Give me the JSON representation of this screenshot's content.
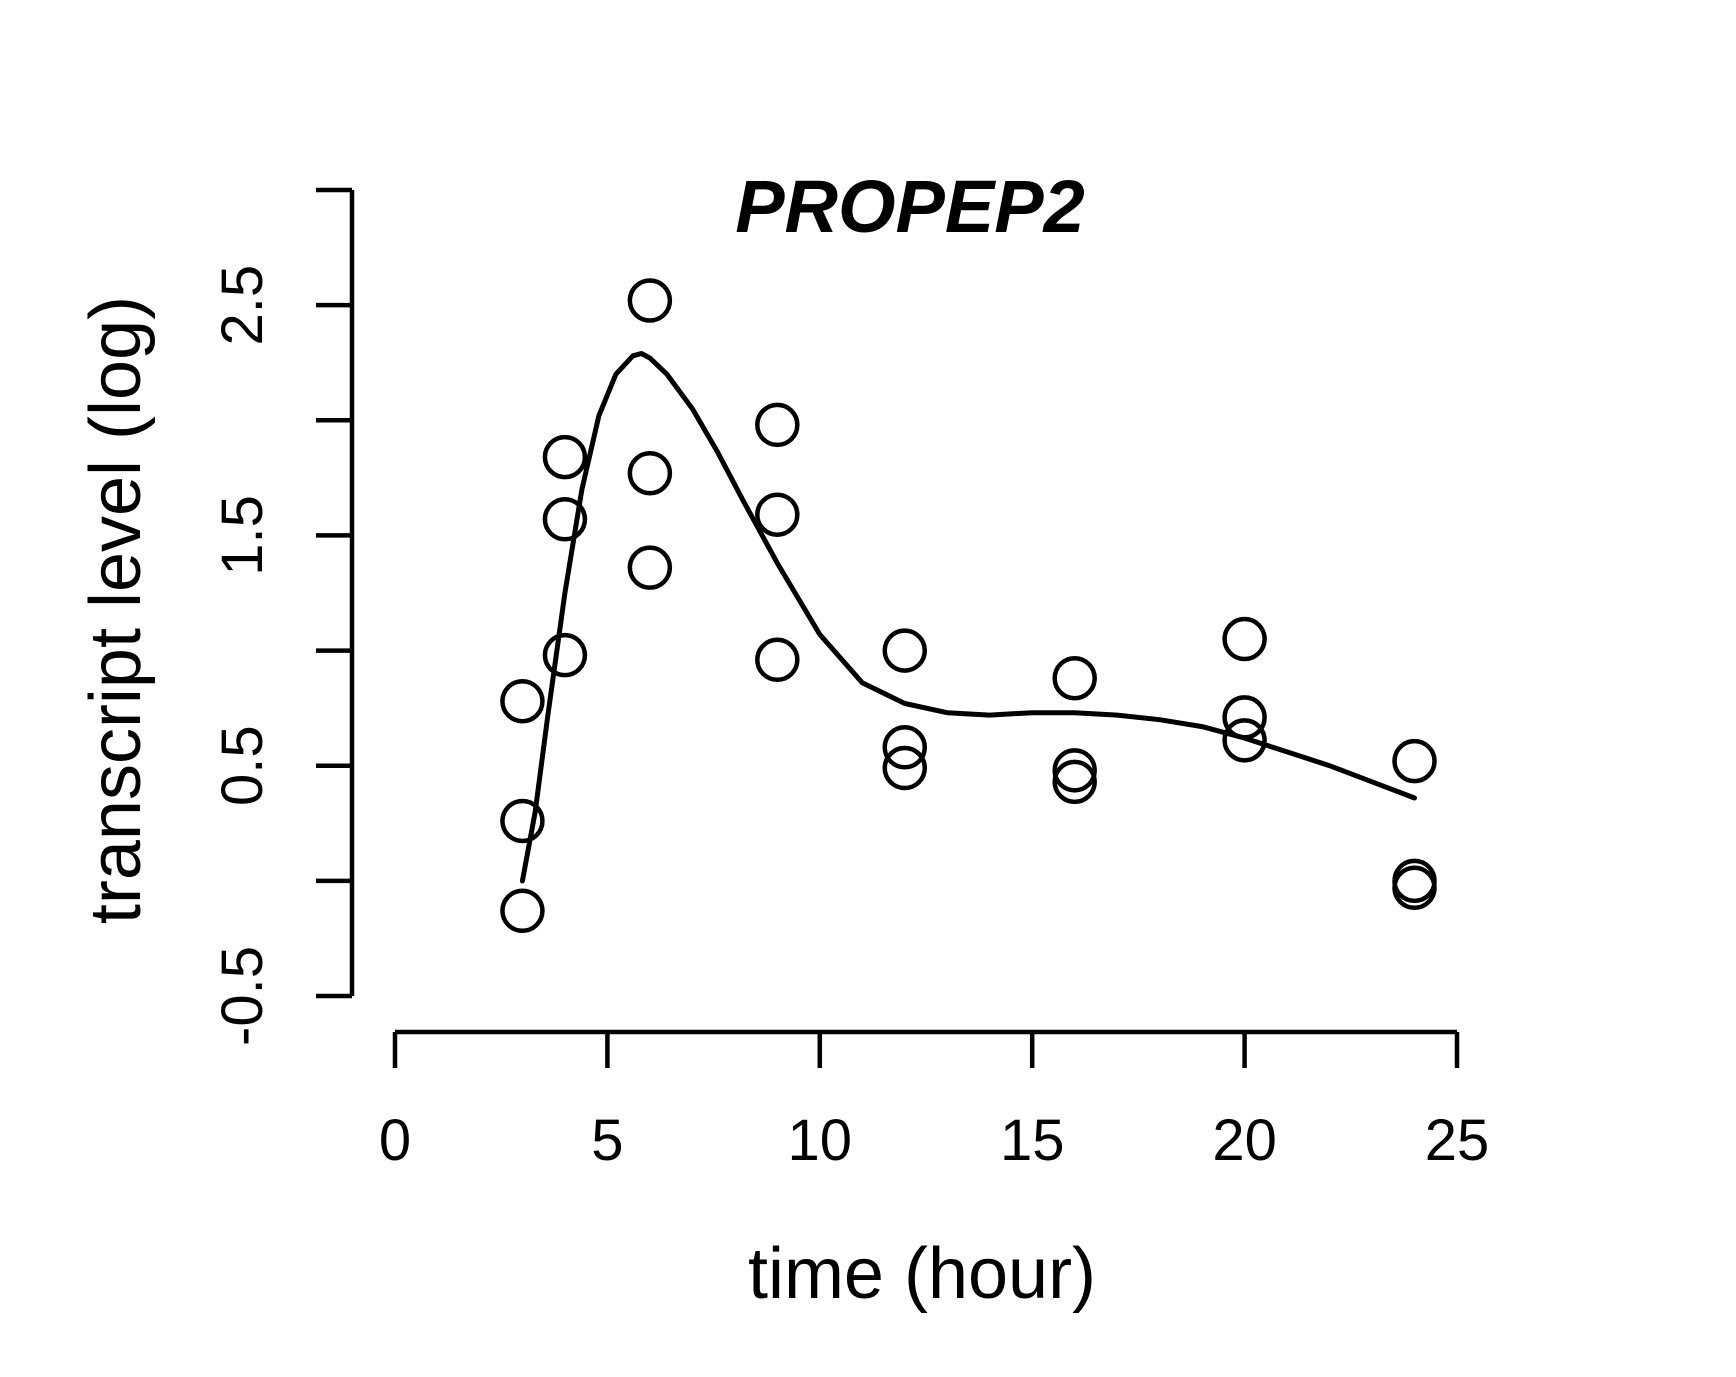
{
  "chart_data": {
    "type": "scatter",
    "title": "PROPEP2",
    "xlabel": "time (hour)",
    "ylabel": "transcript level (log)",
    "xlim": [
      0,
      25
    ],
    "ylim": [
      -0.5,
      3.0
    ],
    "x_ticks": [
      0,
      5,
      10,
      15,
      20,
      25
    ],
    "x_tick_labels": [
      "0",
      "5",
      "10",
      "15",
      "20",
      "25"
    ],
    "y_ticks": [
      -0.5,
      0,
      0.5,
      1,
      1.5,
      2,
      2.5,
      3
    ],
    "y_tick_labels": [
      "-0.5",
      "",
      "0.5",
      "",
      "1.5",
      "",
      "2.5",
      ""
    ],
    "grid": false,
    "legend": "none",
    "series": [
      {
        "type": "scatter",
        "marker": "open-circle",
        "points": [
          {
            "x": 3,
            "y": -0.13
          },
          {
            "x": 3,
            "y": 0.26
          },
          {
            "x": 3,
            "y": 0.78
          },
          {
            "x": 4,
            "y": 0.98
          },
          {
            "x": 4,
            "y": 1.57
          },
          {
            "x": 4,
            "y": 1.84
          },
          {
            "x": 6,
            "y": 1.36
          },
          {
            "x": 6,
            "y": 1.77
          },
          {
            "x": 6,
            "y": 2.52
          },
          {
            "x": 9,
            "y": 0.96
          },
          {
            "x": 9,
            "y": 1.59
          },
          {
            "x": 9,
            "y": 1.98
          },
          {
            "x": 12,
            "y": 0.49
          },
          {
            "x": 12,
            "y": 0.58
          },
          {
            "x": 12,
            "y": 1.0
          },
          {
            "x": 16,
            "y": 0.43
          },
          {
            "x": 16,
            "y": 0.48
          },
          {
            "x": 16,
            "y": 0.88
          },
          {
            "x": 20,
            "y": 0.61
          },
          {
            "x": 20,
            "y": 0.71
          },
          {
            "x": 20,
            "y": 1.05
          },
          {
            "x": 24,
            "y": -0.03
          },
          {
            "x": 24,
            "y": 0.0
          },
          {
            "x": 24,
            "y": 0.52
          }
        ]
      },
      {
        "type": "line",
        "x": [
          3,
          3.3,
          3.6,
          4,
          4.4,
          4.8,
          5.2,
          5.6,
          5.8,
          6,
          6.4,
          7,
          7.6,
          8.2,
          9,
          10,
          11,
          12,
          13,
          14,
          15,
          16,
          17,
          18,
          19,
          20,
          21,
          22,
          23,
          24
        ],
        "y": [
          0.0,
          0.3,
          0.72,
          1.25,
          1.7,
          2.02,
          2.2,
          2.28,
          2.29,
          2.27,
          2.2,
          2.05,
          1.86,
          1.65,
          1.38,
          1.07,
          0.86,
          0.77,
          0.73,
          0.72,
          0.73,
          0.73,
          0.72,
          0.7,
          0.67,
          0.62,
          0.56,
          0.5,
          0.43,
          0.36
        ]
      }
    ]
  }
}
